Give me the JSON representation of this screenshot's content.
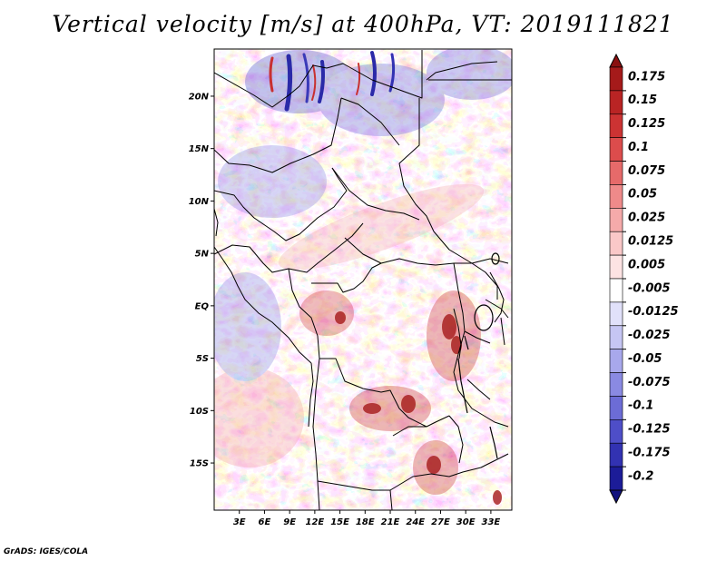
{
  "title": "Vertical velocity [m/s] at 400hPa, VT: 2019111821",
  "credit": "GrADS: IGES/COLA",
  "map": {
    "lon_range": [
      0,
      35.5
    ],
    "lat_range": [
      -19.5,
      24.5
    ],
    "lat_ticks": [
      {
        "value": 20,
        "label": "20N"
      },
      {
        "value": 15,
        "label": "15N"
      },
      {
        "value": 10,
        "label": "10N"
      },
      {
        "value": 5,
        "label": "5N"
      },
      {
        "value": 0,
        "label": "EQ"
      },
      {
        "value": -5,
        "label": "5S"
      },
      {
        "value": -10,
        "label": "10S"
      },
      {
        "value": -15,
        "label": "15S"
      }
    ],
    "lon_ticks": [
      {
        "value": 3,
        "label": "3E"
      },
      {
        "value": 6,
        "label": "6E"
      },
      {
        "value": 9,
        "label": "9E"
      },
      {
        "value": 12,
        "label": "12E"
      },
      {
        "value": 15,
        "label": "15E"
      },
      {
        "value": 18,
        "label": "18E"
      },
      {
        "value": 21,
        "label": "21E"
      },
      {
        "value": 24,
        "label": "24E"
      },
      {
        "value": 27,
        "label": "27E"
      },
      {
        "value": 30,
        "label": "30E"
      },
      {
        "value": 33,
        "label": "33E"
      }
    ]
  },
  "colorbar": {
    "levels": [
      {
        "label": "0.175",
        "color": "#a51a1a"
      },
      {
        "label": "0.15",
        "color": "#b92424"
      },
      {
        "label": "0.125",
        "color": "#cc3333"
      },
      {
        "label": "0.1",
        "color": "#dc4c4c"
      },
      {
        "label": "0.075",
        "color": "#e66a6a"
      },
      {
        "label": "0.05",
        "color": "#ef8a8a"
      },
      {
        "label": "0.025",
        "color": "#f5aaaa"
      },
      {
        "label": "0.0125",
        "color": "#fac8c8"
      },
      {
        "label": "0.005",
        "color": "#fde3e3"
      },
      {
        "label": "-0.005",
        "color": "#ffffff"
      },
      {
        "label": "-0.0125",
        "color": "#e1e1fa"
      },
      {
        "label": "-0.025",
        "color": "#c6c6f3"
      },
      {
        "label": "-0.05",
        "color": "#a8a8ec"
      },
      {
        "label": "-0.075",
        "color": "#8a8ae2"
      },
      {
        "label": "-0.1",
        "color": "#6c6cd6"
      },
      {
        "label": "-0.125",
        "color": "#4e4ec8"
      },
      {
        "label": "-0.175",
        "color": "#3232b2"
      },
      {
        "label": "-0.2",
        "color": "#1c1c98"
      }
    ],
    "top_cap_color": "#8a1010",
    "bottom_cap_color": "#12127e"
  }
}
